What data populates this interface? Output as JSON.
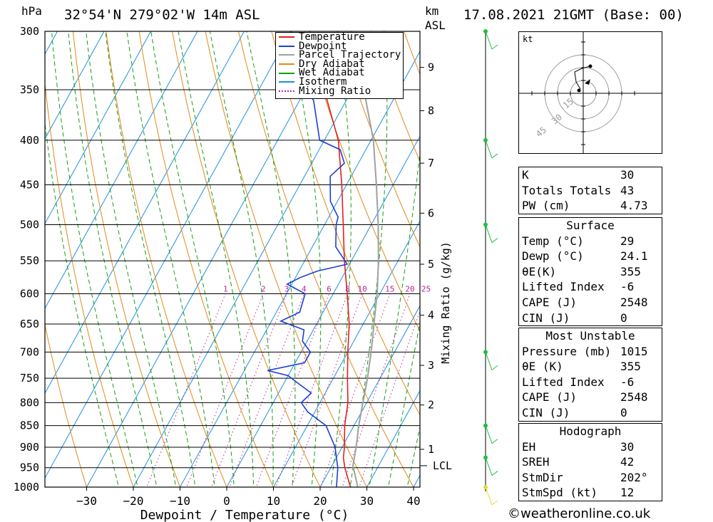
{
  "header": {
    "unit_hpa": "hPa",
    "location": "32°54'N 279°02'W 14m ASL",
    "unit_km": "km",
    "unit_asl": "ASL",
    "datetime": "17.08.2021 21GMT (Base: 00)"
  },
  "legend": [
    "Temperature",
    "Dewpoint",
    "Parcel Trajectory",
    "Dry Adiabat",
    "Wet Adiabat",
    "Isotherm",
    "Mixing Ratio"
  ],
  "colors": {
    "temperature": "#e02020",
    "dewpoint": "#1a3fd6",
    "parcel": "#a0a0a0",
    "dry_adiabat": "#e08a1a",
    "wet_adiabat": "#10a010",
    "isotherm": "#1e90e0",
    "mixing_ratio": "#c0209a"
  },
  "chart_data": {
    "type": "line",
    "title": "",
    "xlabel": "Dewpoint / Temperature (°C)",
    "ylabel": "hPa",
    "right_axis_label": "Mixing Ratio (g/kg)",
    "x_ticks": [
      -30,
      -20,
      -10,
      0,
      10,
      20,
      30,
      40
    ],
    "pressure_ticks": [
      300,
      350,
      400,
      450,
      500,
      550,
      600,
      650,
      700,
      750,
      800,
      850,
      900,
      950,
      1000
    ],
    "km_ticks": [
      {
        "label": "9",
        "p": 330
      },
      {
        "label": "8",
        "p": 370
      },
      {
        "label": "7",
        "p": 425
      },
      {
        "label": "6",
        "p": 485
      },
      {
        "label": "5",
        "p": 555
      },
      {
        "label": "4",
        "p": 635
      },
      {
        "label": "3",
        "p": 725
      },
      {
        "label": "2",
        "p": 805
      },
      {
        "label": "1",
        "p": 905
      }
    ],
    "lcl": {
      "label": "LCL",
      "p": 945
    },
    "mixing_ratio_labels": [
      "1",
      "2",
      "3",
      "4",
      "6",
      "8",
      "10",
      "15",
      "20",
      "25"
    ],
    "series": [
      {
        "name": "Temperature",
        "points": [
          [
            1015,
            29
          ],
          [
            1000,
            26.5
          ],
          [
            950,
            23
          ],
          [
            925,
            21.5
          ],
          [
            900,
            20.5
          ],
          [
            850,
            18
          ],
          [
            800,
            16
          ],
          [
            750,
            13
          ],
          [
            700,
            10
          ],
          [
            650,
            7
          ],
          [
            600,
            3
          ],
          [
            550,
            -1.5
          ],
          [
            500,
            -6
          ],
          [
            450,
            -11
          ],
          [
            400,
            -17
          ],
          [
            350,
            -26
          ],
          [
            300,
            -36
          ]
        ]
      },
      {
        "name": "Dewpoint",
        "points": [
          [
            1015,
            24.1
          ],
          [
            1000,
            23.5
          ],
          [
            950,
            21.5
          ],
          [
            925,
            20
          ],
          [
            900,
            18.5
          ],
          [
            850,
            14
          ],
          [
            820,
            8.5
          ],
          [
            800,
            6
          ],
          [
            780,
            7
          ],
          [
            760,
            3
          ],
          [
            745,
            0
          ],
          [
            735,
            -5
          ],
          [
            720,
            2
          ],
          [
            700,
            2
          ],
          [
            680,
            -1
          ],
          [
            660,
            -2
          ],
          [
            645,
            -8
          ],
          [
            630,
            -5
          ],
          [
            600,
            -6
          ],
          [
            585,
            -11
          ],
          [
            575,
            -9
          ],
          [
            565,
            -6
          ],
          [
            555,
            -0.5
          ],
          [
            530,
            -5
          ],
          [
            500,
            -7.5
          ],
          [
            490,
            -8
          ],
          [
            470,
            -11.5
          ],
          [
            440,
            -14.5
          ],
          [
            425,
            -13
          ],
          [
            410,
            -15.5
          ],
          [
            400,
            -21
          ],
          [
            360,
            -27
          ],
          [
            350,
            -30
          ],
          [
            325,
            -33
          ],
          [
            310,
            -38
          ],
          [
            300,
            -40
          ]
        ]
      },
      {
        "name": "Parcel Trajectory",
        "points": [
          [
            1015,
            29
          ],
          [
            945,
            24.5
          ],
          [
            900,
            23
          ],
          [
            850,
            21
          ],
          [
            800,
            19.2
          ],
          [
            750,
            17.3
          ],
          [
            700,
            15
          ],
          [
            650,
            12.3
          ],
          [
            600,
            9.4
          ],
          [
            550,
            5.8
          ],
          [
            500,
            1.5
          ],
          [
            450,
            -3.6
          ],
          [
            400,
            -9.5
          ],
          [
            350,
            -17.5
          ],
          [
            300,
            -27
          ]
        ]
      }
    ]
  },
  "hodograph": {
    "unit": "kt",
    "ring_labels": [
      "15",
      "30",
      "45"
    ]
  },
  "indices": [
    {
      "label": "K",
      "value": "30"
    },
    {
      "label": "Totals Totals",
      "value": "43"
    },
    {
      "label": "PW (cm)",
      "value": "4.73"
    }
  ],
  "surface": {
    "title": "Surface",
    "rows": [
      {
        "label": "Temp (°C)",
        "value": "29"
      },
      {
        "label": "Dewp (°C)",
        "value": "24.1"
      },
      {
        "label": "θE(K)",
        "value": "355"
      },
      {
        "label": "Lifted Index",
        "value": "-6"
      },
      {
        "label": "CAPE (J)",
        "value": "2548"
      },
      {
        "label": "CIN (J)",
        "value": "0"
      }
    ]
  },
  "most_unstable": {
    "title": "Most Unstable",
    "rows": [
      {
        "label": "Pressure (mb)",
        "value": "1015"
      },
      {
        "label": "θE (K)",
        "value": "355"
      },
      {
        "label": "Lifted Index",
        "value": "-6"
      },
      {
        "label": "CAPE (J)",
        "value": "2548"
      },
      {
        "label": "CIN (J)",
        "value": "0"
      }
    ]
  },
  "hodograph_table": {
    "title": "Hodograph",
    "rows": [
      {
        "label": "EH",
        "value": "30"
      },
      {
        "label": "SREH",
        "value": "42"
      },
      {
        "label": "StmDir",
        "value": "202°"
      },
      {
        "label": "StmSpd (kt)",
        "value": "12"
      }
    ]
  },
  "credit": "©weatheronline.co.uk"
}
